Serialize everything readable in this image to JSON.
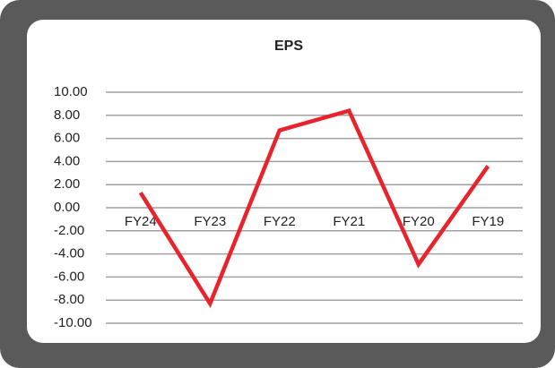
{
  "chart_data": {
    "type": "line",
    "title": "EPS",
    "categories": [
      "FY24",
      "FY23",
      "FY22",
      "FY21",
      "FY20",
      "FY19"
    ],
    "series": [
      {
        "name": "EPS",
        "color": "#e8232b",
        "values": [
          1.3,
          -8.3,
          6.7,
          8.4,
          -4.9,
          3.6
        ]
      }
    ],
    "ylim": [
      -10,
      10
    ],
    "yticks": [
      {
        "value": 10,
        "label": "10.00"
      },
      {
        "value": 8,
        "label": "8.00"
      },
      {
        "value": 6,
        "label": "6.00"
      },
      {
        "value": 4,
        "label": "4.00"
      },
      {
        "value": 2,
        "label": "2.00"
      },
      {
        "value": 0,
        "label": "0.00"
      },
      {
        "value": -2,
        "label": "-2.00"
      },
      {
        "value": -4,
        "label": "-4.00"
      },
      {
        "value": -6,
        "label": "-6.00"
      },
      {
        "value": -8,
        "label": "-8.00"
      },
      {
        "value": -10,
        "label": "-10.00"
      }
    ],
    "grid": true
  }
}
